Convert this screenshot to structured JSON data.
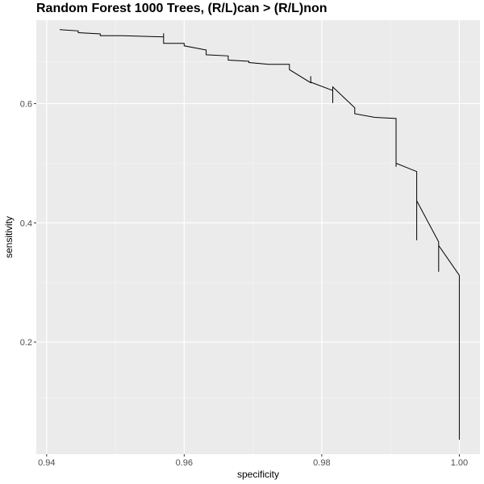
{
  "chart_data": {
    "type": "line",
    "title": "Random Forest 1000 Trees, (R/L)can > (R/L)non",
    "xlabel": "specificity",
    "ylabel": "sensitivity",
    "xlim": [
      0.9385,
      1.003
    ],
    "ylim": [
      0.012,
      0.74
    ],
    "x_ticks": [
      0.94,
      0.96,
      0.98,
      1.0
    ],
    "x_tick_labels": [
      "0.94",
      "0.96",
      "0.98",
      "1.00"
    ],
    "y_ticks": [
      0.2,
      0.4,
      0.6
    ],
    "y_tick_labels": [
      "0.2",
      "0.4",
      "0.6"
    ],
    "grid": true,
    "series": [
      {
        "points": [
          [
            0.9419,
            0.724
          ],
          [
            0.9446,
            0.722
          ],
          [
            0.9446,
            0.719
          ],
          [
            0.9478,
            0.717
          ],
          [
            0.9478,
            0.714
          ],
          [
            0.951,
            0.714
          ],
          [
            0.957,
            0.712
          ],
          [
            0.957,
            0.718
          ],
          [
            0.957,
            0.701
          ],
          [
            0.96,
            0.701
          ],
          [
            0.96,
            0.697
          ],
          [
            0.9632,
            0.69
          ],
          [
            0.9632,
            0.682
          ],
          [
            0.9664,
            0.68
          ],
          [
            0.9664,
            0.673
          ],
          [
            0.9694,
            0.671
          ],
          [
            0.9694,
            0.669
          ],
          [
            0.9723,
            0.666
          ],
          [
            0.9753,
            0.666
          ],
          [
            0.9753,
            0.657
          ],
          [
            0.9784,
            0.635
          ],
          [
            0.9784,
            0.646
          ],
          [
            0.9784,
            0.636
          ],
          [
            0.9816,
            0.622
          ],
          [
            0.9816,
            0.601
          ],
          [
            0.9816,
            0.628
          ],
          [
            0.9848,
            0.593
          ],
          [
            0.9848,
            0.583
          ],
          [
            0.9877,
            0.577
          ],
          [
            0.9908,
            0.575
          ],
          [
            0.9908,
            0.494
          ],
          [
            0.9908,
            0.5
          ],
          [
            0.9938,
            0.486
          ],
          [
            0.9938,
            0.371
          ],
          [
            0.9938,
            0.437
          ],
          [
            0.997,
            0.368
          ],
          [
            0.997,
            0.318
          ],
          [
            0.997,
            0.362
          ],
          [
            1.0,
            0.312
          ],
          [
            1.0,
            0.036
          ]
        ]
      }
    ]
  }
}
